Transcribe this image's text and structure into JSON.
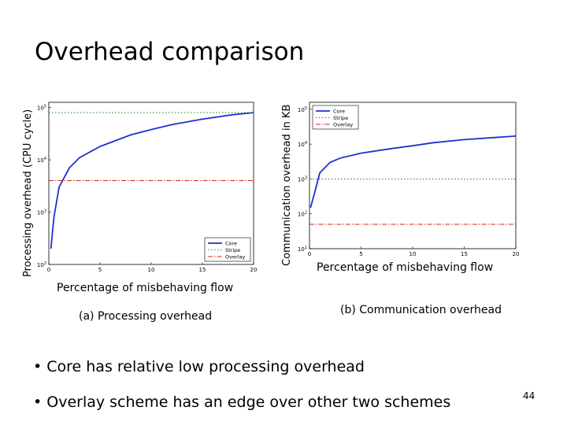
{
  "slide": {
    "title": "Overhead comparison",
    "page_number": "44"
  },
  "chart_a": {
    "ylabel": "Processing overhead (CPU cycle)",
    "xlabel": "Percentage of misbehaving flow",
    "caption": "(a) Processing overhead"
  },
  "chart_b": {
    "ylabel": "Communication overhead in KB",
    "xlabel": "Percentage of misbehaving flow",
    "caption": "(b) Communication overhead"
  },
  "bullets": [
    "• Core has relative low processing overhead",
    "• Overlay scheme has an edge over other two schemes"
  ],
  "colors": {
    "core": "#1f2fd0",
    "stripe": "#2f8f2f",
    "overlay": "#d02020"
  },
  "chart_data": [
    {
      "type": "line",
      "x_ticks": [
        "0",
        "5",
        "10",
        "15",
        "20"
      ],
      "y_ticks": [
        "10^2",
        "10^3",
        "10^4",
        "10^5"
      ],
      "xlim": [
        0,
        20
      ],
      "ylim_log10": [
        2,
        5.1
      ],
      "legend": [
        "Core",
        "Stripe",
        "Overlay"
      ],
      "legend_position": "bottom-right",
      "series": [
        {
          "name": "Core",
          "x": [
            0.2,
            0.5,
            1,
            2,
            3,
            5,
            8,
            10,
            12,
            15,
            18,
            20
          ],
          "y": [
            200,
            800,
            3000,
            7000,
            11000,
            18000,
            30000,
            38000,
            47000,
            60000,
            73000,
            80000
          ]
        },
        {
          "name": "Stripe",
          "x": [
            0,
            20
          ],
          "y": [
            80000,
            80000
          ]
        },
        {
          "name": "Overlay",
          "x": [
            0,
            20
          ],
          "y": [
            4000,
            4000
          ]
        }
      ]
    },
    {
      "type": "line",
      "x_ticks": [
        "0",
        "5",
        "10",
        "15",
        "20"
      ],
      "y_ticks": [
        "10^1",
        "10^2",
        "10^3",
        "10^4",
        "10^5"
      ],
      "xlim": [
        0,
        20
      ],
      "ylim_log10": [
        1,
        5.2
      ],
      "legend": [
        "Core",
        "Stripe",
        "Overlay"
      ],
      "legend_position": "top-left",
      "series": [
        {
          "name": "Core",
          "x": [
            0.1,
            0.5,
            1,
            2,
            3,
            5,
            8,
            10,
            12,
            15,
            18,
            20
          ],
          "y": [
            150,
            400,
            1500,
            3000,
            4000,
            5500,
            7500,
            9000,
            11000,
            13500,
            15500,
            17000
          ]
        },
        {
          "name": "Stripe",
          "x": [
            0,
            20
          ],
          "y": [
            1000,
            1000
          ]
        },
        {
          "name": "Overlay",
          "x": [
            0,
            20
          ],
          "y": [
            50,
            50
          ]
        }
      ]
    }
  ]
}
